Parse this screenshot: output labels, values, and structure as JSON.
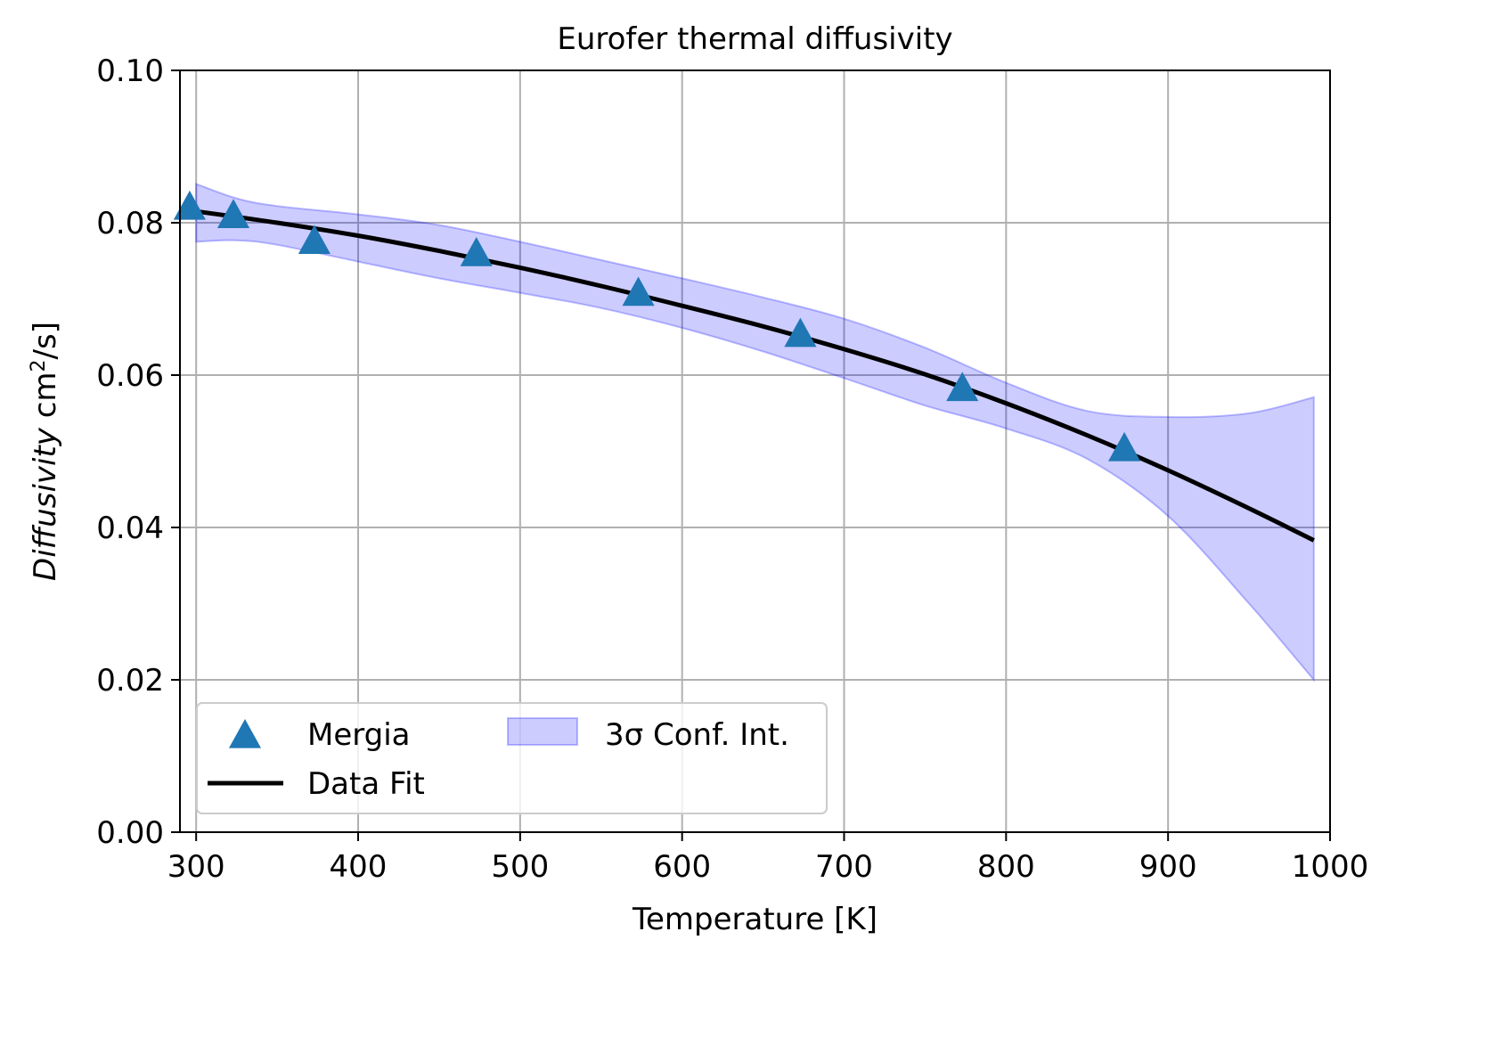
{
  "chart_data": {
    "type": "line",
    "title": "Eurofer thermal diffusivity",
    "xlabel": "Temperature [K]",
    "ylabel": {
      "italic": "Diffusivity",
      "unit": "cm",
      "sup": "2",
      "unit_tail": "/s]",
      "open_bracket": " cm"
    },
    "xlim": [
      290,
      1000
    ],
    "ylim": [
      0.0,
      0.1
    ],
    "x_ticks": [
      300,
      400,
      500,
      600,
      700,
      800,
      900,
      1000
    ],
    "x_tick_labels": [
      "300",
      "400",
      "500",
      "600",
      "700",
      "800",
      "900",
      "1000"
    ],
    "y_ticks": [
      0.0,
      0.02,
      0.04,
      0.06,
      0.08,
      0.1
    ],
    "y_tick_labels": [
      "0.00",
      "0.02",
      "0.04",
      "0.06",
      "0.08",
      "0.10"
    ],
    "grid": true,
    "legend_position": "bottom-left",
    "series": [
      {
        "name": "Mergia",
        "kind": "scatter",
        "marker": "triangle-up",
        "color": "#1f77b4",
        "x": [
          296,
          323,
          373,
          473,
          573,
          673,
          773,
          873
        ],
        "y": [
          0.082,
          0.0809,
          0.0775,
          0.0759,
          0.0707,
          0.0653,
          0.0582,
          0.0503
        ]
      },
      {
        "name": "Data Fit",
        "kind": "line",
        "color": "#000000",
        "x": [
          300,
          350,
          400,
          450,
          500,
          550,
          600,
          650,
          700,
          750,
          800,
          850,
          900,
          950,
          990
        ],
        "y": [
          0.0815,
          0.08,
          0.0783,
          0.0763,
          0.0741,
          0.0717,
          0.0691,
          0.0664,
          0.0634,
          0.0601,
          0.0563,
          0.0521,
          0.0475,
          0.0425,
          0.0383
        ]
      },
      {
        "name": "3σ Conf. Int.",
        "kind": "band",
        "color": "#0000ff",
        "x": [
          300,
          325,
          350,
          400,
          450,
          500,
          550,
          600,
          650,
          700,
          750,
          800,
          850,
          900,
          950,
          990
        ],
        "upper": [
          0.0851,
          0.0832,
          0.0822,
          0.0811,
          0.0797,
          0.0775,
          0.0751,
          0.0727,
          0.0702,
          0.0674,
          0.0636,
          0.059,
          0.0553,
          0.0545,
          0.055,
          0.0571
        ],
        "lower": [
          0.0775,
          0.0777,
          0.0771,
          0.0749,
          0.0727,
          0.0708,
          0.0688,
          0.0662,
          0.0631,
          0.0596,
          0.056,
          0.053,
          0.049,
          0.0415,
          0.03,
          0.02
        ]
      }
    ],
    "legend": {
      "entries": [
        "Mergia",
        "Data Fit",
        "3σ Conf. Int."
      ]
    }
  }
}
